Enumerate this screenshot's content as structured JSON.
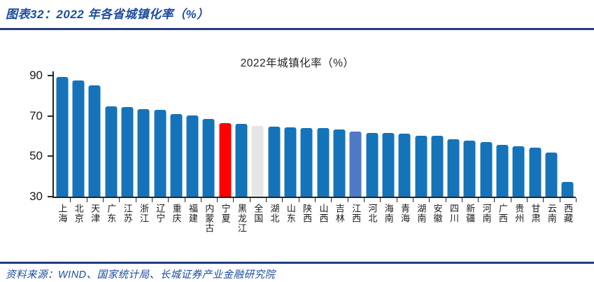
{
  "header": {
    "title": "图表32：2022 年各省城镇化率（%）"
  },
  "chart": {
    "title": "2022年城镇化率（%）"
  },
  "footer": {
    "source": "资料来源：WIND、国家统计局、长城证券产业金融研究院"
  },
  "chart_data": {
    "type": "bar",
    "title": "2022年城镇化率（%）",
    "xlabel": "",
    "ylabel": "",
    "ylim": [
      30,
      90
    ],
    "y_ticks": [
      90,
      70,
      50,
      30
    ],
    "grid": false,
    "legend": "none",
    "colors": {
      "default": "#1573b9",
      "red": "#ff0000",
      "gray": "#e6e6e6",
      "blue_light": "#4d79c7"
    },
    "bars": [
      {
        "label": "上海",
        "value": 89.3,
        "color": "default"
      },
      {
        "label": "北京",
        "value": 87.6,
        "color": "default"
      },
      {
        "label": "天津",
        "value": 85.1,
        "color": "default"
      },
      {
        "label": "广东",
        "value": 74.8,
        "color": "default"
      },
      {
        "label": "江苏",
        "value": 74.4,
        "color": "default"
      },
      {
        "label": "浙江",
        "value": 73.4,
        "color": "default"
      },
      {
        "label": "辽宁",
        "value": 73.0,
        "color": "default"
      },
      {
        "label": "重庆",
        "value": 71.0,
        "color": "default"
      },
      {
        "label": "福建",
        "value": 70.1,
        "color": "default"
      },
      {
        "label": "内蒙古",
        "value": 68.6,
        "color": "default"
      },
      {
        "label": "宁夏",
        "value": 66.3,
        "color": "red"
      },
      {
        "label": "黑龙江",
        "value": 66.0,
        "color": "default"
      },
      {
        "label": "全国",
        "value": 65.2,
        "color": "gray"
      },
      {
        "label": "湖北",
        "value": 64.7,
        "color": "default"
      },
      {
        "label": "山东",
        "value": 64.5,
        "color": "default"
      },
      {
        "label": "陕西",
        "value": 64.0,
        "color": "default"
      },
      {
        "label": "山西",
        "value": 63.9,
        "color": "default"
      },
      {
        "label": "吉林",
        "value": 63.4,
        "color": "default"
      },
      {
        "label": "江西",
        "value": 62.1,
        "color": "blue_light"
      },
      {
        "label": "河北",
        "value": 61.7,
        "color": "default"
      },
      {
        "label": "海南",
        "value": 61.5,
        "color": "default"
      },
      {
        "label": "青海",
        "value": 61.4,
        "color": "default"
      },
      {
        "label": "湖南",
        "value": 60.3,
        "color": "default"
      },
      {
        "label": "安徽",
        "value": 60.2,
        "color": "default"
      },
      {
        "label": "四川",
        "value": 58.4,
        "color": "default"
      },
      {
        "label": "新疆",
        "value": 57.9,
        "color": "default"
      },
      {
        "label": "河南",
        "value": 57.1,
        "color": "default"
      },
      {
        "label": "广西",
        "value": 55.7,
        "color": "default"
      },
      {
        "label": "贵州",
        "value": 55.1,
        "color": "default"
      },
      {
        "label": "甘肃",
        "value": 54.2,
        "color": "default"
      },
      {
        "label": "云南",
        "value": 51.7,
        "color": "default"
      },
      {
        "label": "西藏",
        "value": 37.4,
        "color": "default"
      }
    ]
  }
}
